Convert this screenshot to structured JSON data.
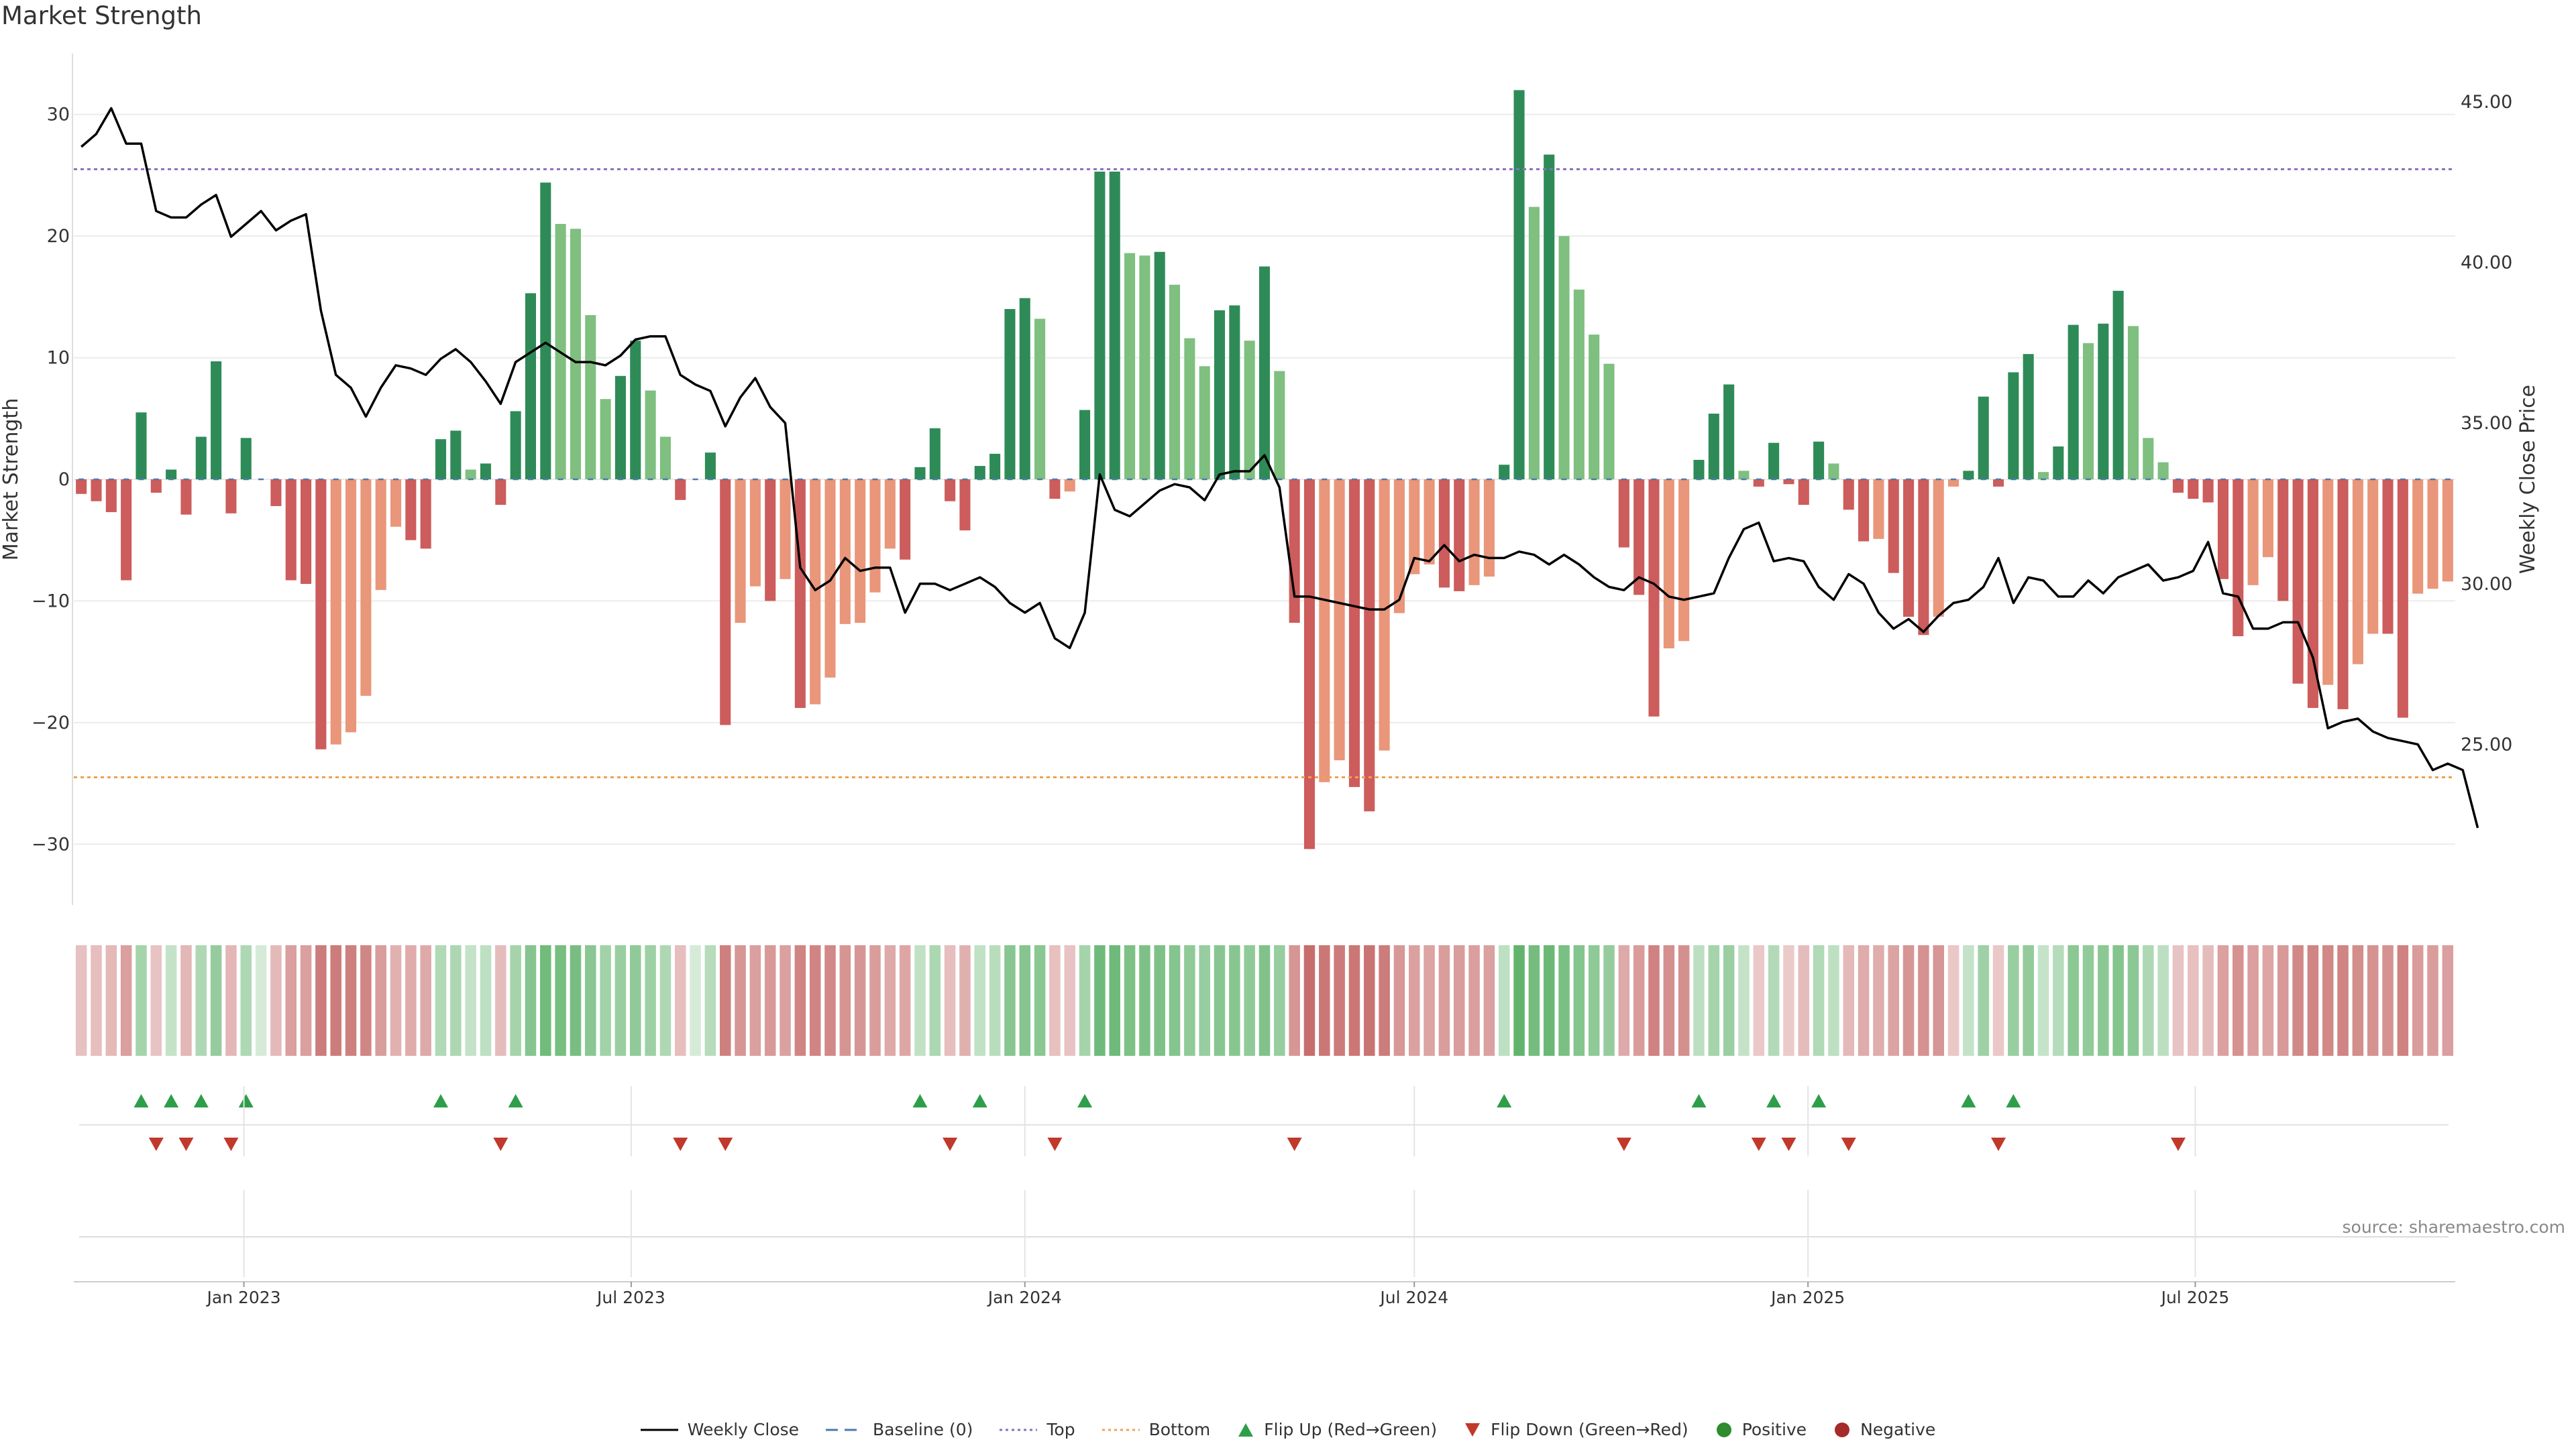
{
  "chart_data": {
    "type": "bar",
    "title": "Market Strength",
    "ylabel": "Market Strength",
    "y2label": "Weekly Close Price",
    "ylim": [
      -35,
      35
    ],
    "y2lim": [
      20.0,
      46.5
    ],
    "yticks": [
      -30,
      -20,
      -10,
      0,
      10,
      20,
      30
    ],
    "y2ticks": [
      "25.00",
      "30.00",
      "35.00",
      "40.00",
      "45.00"
    ],
    "xticks": [
      "Jan 2023",
      "Jul 2023",
      "Jan 2024",
      "Jul 2024",
      "Jan 2025",
      "Jul 2025"
    ],
    "top_line": 25.5,
    "bottom_line": -24.5,
    "start_date": "2022-10-17",
    "bar_values": [
      -1.2,
      -1.8,
      -2.7,
      -8.3,
      5.5,
      -1.1,
      0.8,
      -2.9,
      3.5,
      9.7,
      -2.8,
      3.4,
      0,
      -2.2,
      -8.3,
      -8.6,
      -22.2,
      -21.8,
      -20.8,
      -17.8,
      -9.1,
      -3.9,
      -5.0,
      -5.7,
      3.3,
      4.0,
      0.8,
      1.3,
      -2.1,
      5.6,
      15.3,
      24.4,
      21.0,
      20.6,
      13.5,
      6.6,
      8.5,
      11.4,
      7.3,
      3.5,
      -1.7,
      0,
      2.2,
      -20.2,
      -11.8,
      -8.8,
      -10.0,
      -8.2,
      -18.8,
      -18.5,
      -16.3,
      -11.9,
      -11.8,
      -9.3,
      -5.7,
      -6.6,
      1.0,
      4.2,
      -1.8,
      -4.2,
      1.1,
      2.1,
      14.0,
      14.9,
      13.2,
      -1.6,
      -1.0,
      5.7,
      25.3,
      25.3,
      18.6,
      18.4,
      18.7,
      16.0,
      11.6,
      9.3,
      13.9,
      14.3,
      11.4,
      17.5,
      8.9,
      -11.8,
      -30.4,
      -24.9,
      -23.1,
      -25.3,
      -27.3,
      -22.3,
      -11.0,
      -7.8,
      -7.0,
      -8.9,
      -9.2,
      -8.7,
      -8.0,
      1.2,
      32.0,
      22.4,
      26.7,
      20.0,
      15.6,
      11.9,
      9.5,
      -5.6,
      -9.5,
      -19.5,
      -13.9,
      -13.3,
      1.6,
      5.4,
      7.8,
      0.7,
      -0.6,
      3.0,
      -0.4,
      -2.1,
      3.1,
      1.3,
      -2.5,
      -5.1,
      -4.9,
      -7.7,
      -11.3,
      -12.8,
      -11.3,
      -0.6,
      0.7,
      6.8,
      -0.6,
      8.8,
      10.3,
      0.6,
      2.7,
      12.7,
      11.2,
      12.8,
      15.5,
      12.6,
      3.4,
      1.4,
      -1.1,
      -1.6,
      -1.9,
      -8.2,
      -12.9,
      -8.7,
      -6.4,
      -10.0,
      -16.8,
      -18.8,
      -16.9,
      -18.9,
      -15.2,
      -12.7,
      -12.7,
      -19.6,
      -9.4,
      -9.0,
      -8.4
    ],
    "close": [
      43.6,
      44.0,
      44.8,
      43.7,
      43.7,
      41.6,
      41.4,
      41.4,
      41.8,
      42.1,
      40.8,
      41.2,
      41.6,
      41.0,
      41.3,
      41.5,
      38.5,
      36.5,
      36.1,
      35.2,
      36.1,
      36.8,
      36.7,
      36.5,
      37.0,
      37.3,
      36.9,
      36.3,
      35.6,
      36.9,
      37.2,
      37.5,
      37.2,
      36.9,
      36.9,
      36.8,
      37.1,
      37.6,
      37.7,
      37.7,
      36.5,
      36.2,
      36.0,
      34.9,
      35.8,
      36.4,
      35.5,
      35.0,
      30.5,
      29.8,
      30.1,
      30.8,
      30.4,
      30.5,
      30.5,
      29.1,
      30.0,
      30.0,
      29.8,
      30.0,
      30.2,
      29.9,
      29.4,
      29.1,
      29.4,
      28.3,
      28.0,
      29.1,
      33.4,
      32.3,
      32.1,
      32.5,
      32.9,
      33.1,
      33.0,
      32.6,
      33.4,
      33.5,
      33.5,
      34.0,
      33.0,
      29.6,
      29.6,
      29.5,
      29.4,
      29.3,
      29.2,
      29.2,
      29.5,
      30.8,
      30.7,
      31.2,
      30.7,
      30.9,
      30.8,
      30.8,
      31.0,
      30.9,
      30.6,
      30.9,
      30.6,
      30.2,
      29.9,
      29.8,
      30.2,
      30.0,
      29.6,
      29.5,
      29.6,
      29.7,
      30.8,
      31.7,
      31.9,
      30.7,
      30.8,
      30.7,
      29.9,
      29.5,
      30.3,
      30.0,
      29.1,
      28.6,
      28.9,
      28.5,
      29.0,
      29.4,
      29.5,
      29.9,
      30.8,
      29.4,
      30.2,
      30.1,
      29.6,
      29.6,
      30.1,
      29.7,
      30.2,
      30.4,
      30.6,
      30.1,
      30.2,
      30.4,
      31.3,
      29.7,
      29.6,
      28.6,
      28.6,
      28.8,
      28.8,
      27.7,
      25.5,
      25.7,
      25.8,
      25.4,
      25.2,
      25.1,
      25.0,
      24.2,
      24.4,
      24.2,
      22.4
    ]
  },
  "legend": {
    "weekly_close": "Weekly Close",
    "baseline": "Baseline (0)",
    "top": "Top",
    "bottom": "Bottom",
    "flip_up": "Flip Up (Red→Green)",
    "flip_down": "Flip Down (Green→Red)",
    "positive": "Positive",
    "negative": "Negative"
  },
  "source": "source: sharemaestro.com",
  "colors": {
    "pos_strong": "#2e8b57",
    "pos_weak": "#7fbf7f",
    "neg_strong": "#cd5c5c",
    "neg_weak": "#e9967a",
    "top_line": "#8a6fbf",
    "bottom_line": "#f0a050",
    "baseline": "#4a7ab0",
    "flip_up": "#2e9e4a",
    "flip_down": "#c0392b",
    "positive": "#2e8b2e",
    "negative": "#a52a2a",
    "close_line": "#000000"
  }
}
